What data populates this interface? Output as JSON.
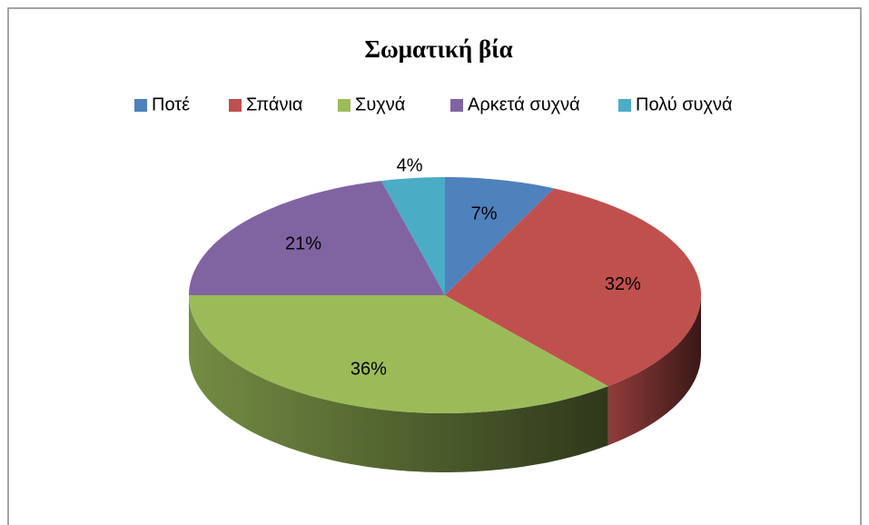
{
  "chart_data": {
    "type": "pie",
    "title": "Σωματική βία",
    "categories": [
      "Ποτέ",
      "Σπάνια",
      "Συχνά",
      "Αρκετά συχνά",
      "Πολύ συχνά"
    ],
    "values": [
      7,
      32,
      36,
      21,
      4
    ],
    "value_labels": [
      "7%",
      "32%",
      "36%",
      "21%",
      "4%"
    ],
    "colors": [
      "#4f81bd",
      "#c0504d",
      "#9bbb59",
      "#8064a2",
      "#4bacc6"
    ],
    "legend": "top"
  }
}
